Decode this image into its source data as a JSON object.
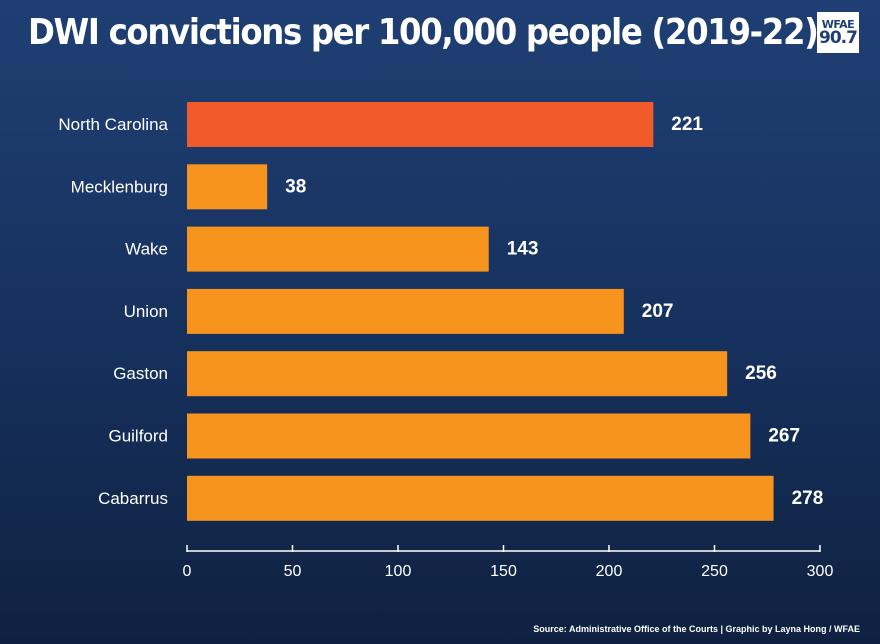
{
  "chart_data": {
    "type": "bar",
    "orientation": "horizontal",
    "title": "DWI convictions per 100,000 people (2019-22)",
    "categories": [
      "North Carolina",
      "Mecklenburg",
      "Wake",
      "Union",
      "Gaston",
      "Guilford",
      "Cabarrus"
    ],
    "values": [
      221,
      38,
      143,
      207,
      256,
      267,
      278
    ],
    "xlim": [
      0,
      300
    ],
    "xticks": [
      0,
      50,
      100,
      150,
      200,
      250,
      300
    ],
    "highlight_category": "North Carolina",
    "colors": {
      "highlight": "#f15a2b",
      "bar": "#f7941d",
      "text": "#ffffff",
      "axis": "#ffffff"
    },
    "grid": false,
    "legend": "none"
  },
  "logo": {
    "line1": "WFAE",
    "line2": "90.7"
  },
  "source": "Source: Administrative Office of the Courts | Graphic by Layna Hong / WFAE"
}
